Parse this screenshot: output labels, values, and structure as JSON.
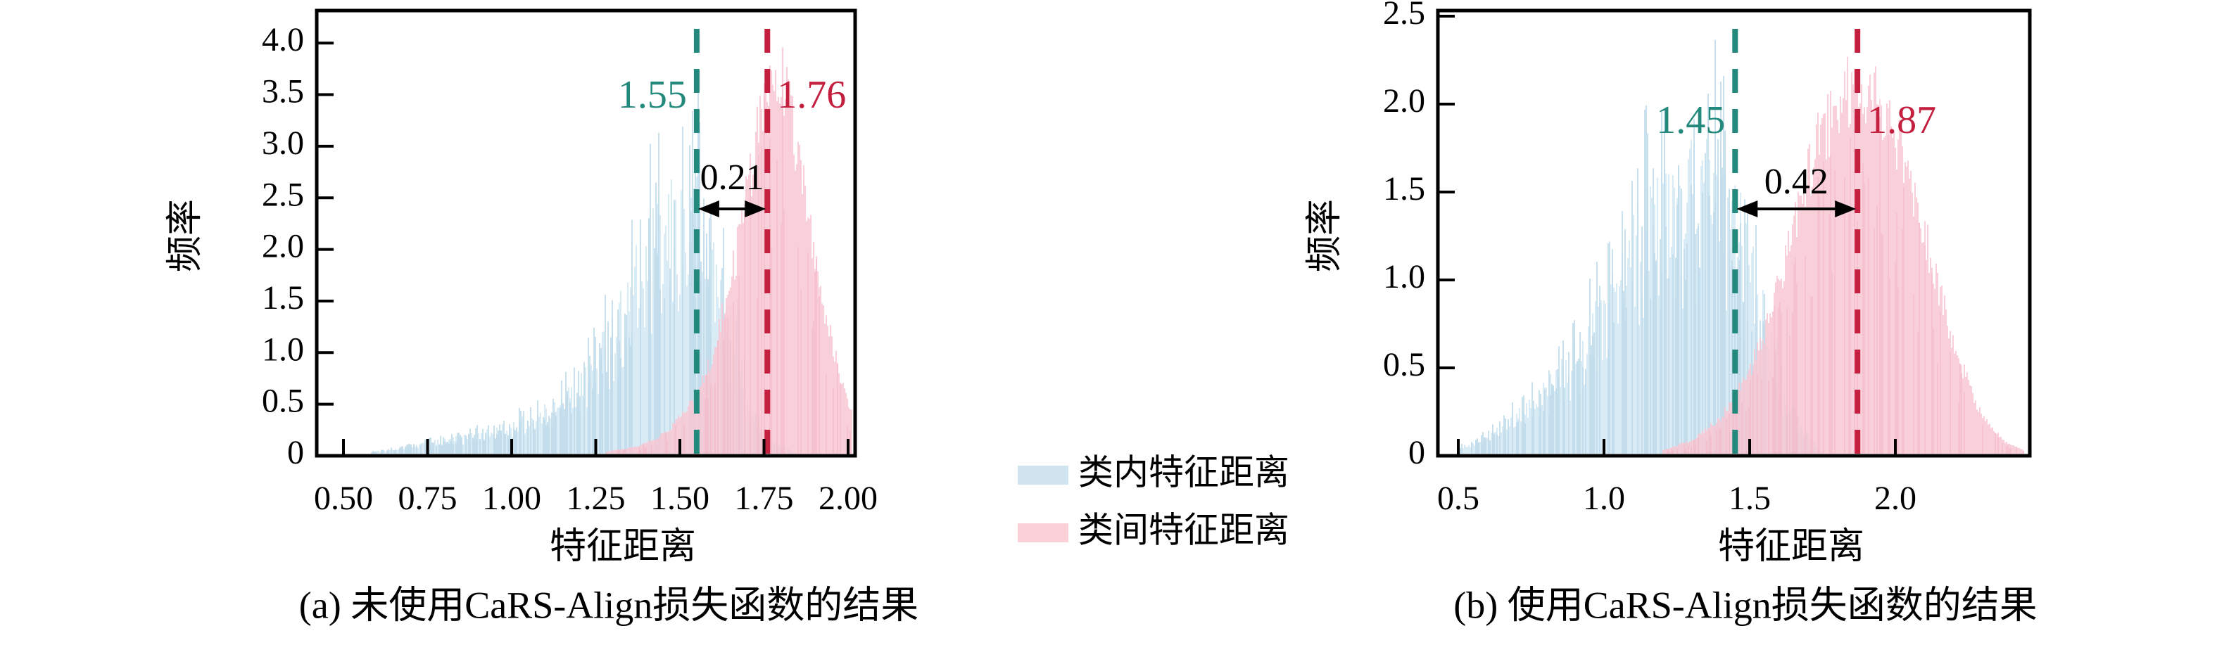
{
  "figure": {
    "background": "#ffffff",
    "axis_color": "#000000",
    "kind": "paired density histograms of feature distances"
  },
  "legend": {
    "items": [
      {
        "label": "类内特征距离",
        "color": "#cfe4ee"
      },
      {
        "label": "类间特征距离",
        "color": "#fbd0d9"
      }
    ]
  },
  "chart_data": [
    {
      "type": "histogram",
      "panel": "a",
      "caption": "(a) 未使用CaRS-Align损失函数的结果",
      "xlabel": "特征距离",
      "ylabel": "频率",
      "xlim": [
        0.42,
        2.02
      ],
      "ylim": [
        0,
        4.31
      ],
      "grid": false,
      "xticks": [
        "0.50",
        "0.75",
        "1.00",
        "1.25",
        "1.50",
        "1.75",
        "2.00"
      ],
      "xtick_values": [
        0.5,
        0.75,
        1.0,
        1.25,
        1.5,
        1.75,
        2.0
      ],
      "yticks": [
        "0",
        "0.5",
        "1.0",
        "1.5",
        "2.0",
        "2.5",
        "3.0",
        "3.5",
        "4.0"
      ],
      "ytick_values": [
        0,
        0.5,
        1.0,
        1.5,
        2.0,
        2.5,
        3.0,
        3.5,
        4.0
      ],
      "series": [
        {
          "name": "类内特征距离",
          "style": "spiky",
          "fill": "#d9ebf4",
          "streak": "#bfdbea",
          "fill_opacity": 1,
          "streak_opacity": 0.85,
          "base_frac": [
            0.42,
            0.92
          ],
          "streak_frac": [
            0.5,
            1.2
          ],
          "streak_prob": 0.55,
          "envelope": [
            [
              0.58,
              0.02
            ],
            [
              0.66,
              0.06
            ],
            [
              0.74,
              0.12
            ],
            [
              0.82,
              0.18
            ],
            [
              0.9,
              0.24
            ],
            [
              0.98,
              0.32
            ],
            [
              1.06,
              0.44
            ],
            [
              1.14,
              0.62
            ],
            [
              1.22,
              0.95
            ],
            [
              1.3,
              1.55
            ],
            [
              1.38,
              2.3
            ],
            [
              1.44,
              2.75
            ],
            [
              1.5,
              3.05
            ],
            [
              1.56,
              2.95
            ],
            [
              1.61,
              2.3
            ],
            [
              1.66,
              1.45
            ],
            [
              1.7,
              0.75
            ],
            [
              1.74,
              0.3
            ],
            [
              1.79,
              0.1
            ],
            [
              1.84,
              0.02
            ]
          ]
        },
        {
          "name": "类间特征距离",
          "style": "smooth",
          "fill": "#f8c8d3",
          "streak": "#f3b2c2",
          "fill_opacity": 0.85,
          "streak_opacity": 0.45,
          "base_frac": [
            0.82,
            1.02
          ],
          "streak_frac": [
            0.45,
            0.95
          ],
          "streak_prob": 0.35,
          "envelope": [
            [
              1.28,
              0.02
            ],
            [
              1.38,
              0.08
            ],
            [
              1.46,
              0.22
            ],
            [
              1.54,
              0.55
            ],
            [
              1.6,
              1.05
            ],
            [
              1.66,
              1.95
            ],
            [
              1.71,
              2.9
            ],
            [
              1.75,
              3.75
            ],
            [
              1.78,
              4.2
            ],
            [
              1.82,
              3.8
            ],
            [
              1.86,
              2.95
            ],
            [
              1.9,
              2.1
            ],
            [
              1.94,
              1.35
            ],
            [
              1.98,
              0.75
            ],
            [
              2.02,
              0.35
            ],
            [
              2.06,
              0.12
            ],
            [
              2.1,
              0.03
            ]
          ]
        }
      ],
      "mean_lines": [
        {
          "value": 1.55,
          "label": "1.55",
          "color": "#23897c",
          "label_side": "left"
        },
        {
          "value": 1.76,
          "label": "1.76",
          "color": "#c41f3e",
          "label_side": "right"
        }
      ],
      "gap": {
        "label": "0.21",
        "from": 1.55,
        "to": 1.76
      }
    },
    {
      "type": "histogram",
      "panel": "b",
      "caption": "(b) 使用CaRS-Align损失函数的结果",
      "xlabel": "特征距离",
      "ylabel": "频率",
      "xlim": [
        0.41,
        2.44
      ],
      "ylim": [
        0,
        2.53
      ],
      "grid": false,
      "xticks": [
        "0.5",
        "1.0",
        "1.5",
        "2.0"
      ],
      "xtick_values": [
        0.5,
        1.0,
        1.5,
        2.0
      ],
      "yticks": [
        "0",
        "0.5",
        "1.0",
        "1.5",
        "2.0",
        "2.5"
      ],
      "ytick_values": [
        0,
        0.5,
        1.0,
        1.5,
        2.0,
        2.5
      ],
      "series": [
        {
          "name": "类内特征距离",
          "style": "spiky",
          "fill": "#d9ebf4",
          "streak": "#bfdbea",
          "fill_opacity": 1,
          "streak_opacity": 0.85,
          "base_frac": [
            0.42,
            0.92
          ],
          "streak_frac": [
            0.5,
            1.2
          ],
          "streak_prob": 0.55,
          "envelope": [
            [
              0.5,
              0.04
            ],
            [
              0.58,
              0.1
            ],
            [
              0.66,
              0.2
            ],
            [
              0.74,
              0.35
            ],
            [
              0.82,
              0.52
            ],
            [
              0.9,
              0.72
            ],
            [
              0.98,
              1.0
            ],
            [
              1.06,
              1.35
            ],
            [
              1.14,
              1.68
            ],
            [
              1.22,
              1.88
            ],
            [
              1.3,
              1.95
            ],
            [
              1.38,
              1.97
            ],
            [
              1.45,
              1.75
            ],
            [
              1.52,
              1.25
            ],
            [
              1.58,
              0.72
            ],
            [
              1.64,
              0.3
            ],
            [
              1.7,
              0.1
            ],
            [
              1.75,
              0.02
            ]
          ]
        },
        {
          "name": "类间特征距离",
          "style": "smooth",
          "fill": "#f8c8d3",
          "streak": "#f3b2c2",
          "fill_opacity": 0.85,
          "streak_opacity": 0.45,
          "base_frac": [
            0.82,
            1.02
          ],
          "streak_frac": [
            0.45,
            0.95
          ],
          "streak_prob": 0.35,
          "envelope": [
            [
              1.2,
              0.02
            ],
            [
              1.3,
              0.08
            ],
            [
              1.4,
              0.22
            ],
            [
              1.5,
              0.5
            ],
            [
              1.58,
              0.9
            ],
            [
              1.66,
              1.45
            ],
            [
              1.74,
              1.95
            ],
            [
              1.82,
              2.2
            ],
            [
              1.9,
              2.27
            ],
            [
              1.97,
              2.12
            ],
            [
              2.05,
              1.7
            ],
            [
              2.13,
              1.15
            ],
            [
              2.21,
              0.62
            ],
            [
              2.29,
              0.26
            ],
            [
              2.37,
              0.08
            ],
            [
              2.44,
              0.02
            ]
          ]
        }
      ],
      "mean_lines": [
        {
          "value": 1.45,
          "label": "1.45",
          "color": "#23897c",
          "label_side": "left"
        },
        {
          "value": 1.87,
          "label": "1.87",
          "color": "#c41f3e",
          "label_side": "right"
        }
      ],
      "gap": {
        "label": "0.42",
        "from": 1.45,
        "to": 1.87
      }
    }
  ]
}
